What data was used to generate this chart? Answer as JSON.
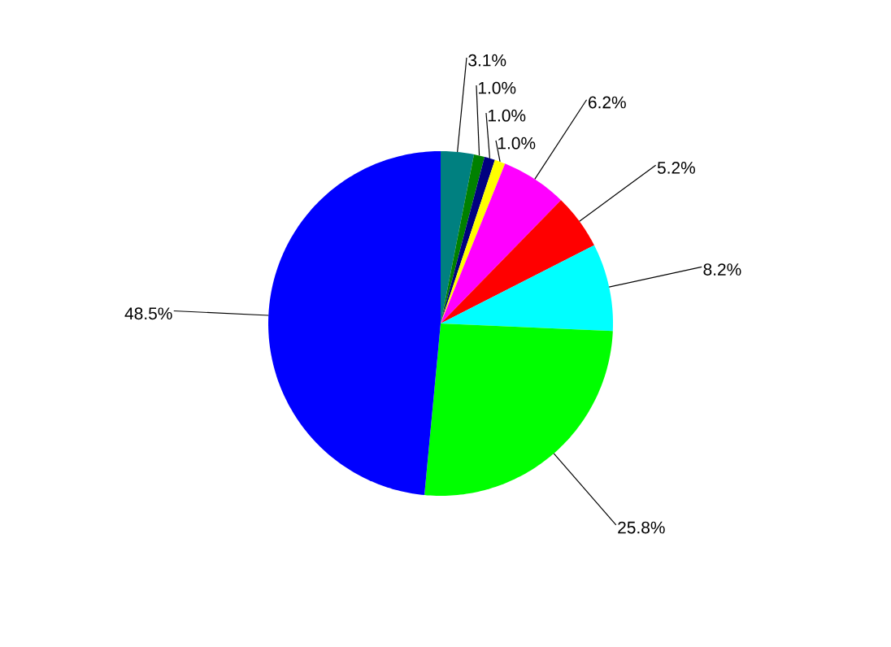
{
  "chart_data": {
    "type": "pie",
    "categories": [
      null,
      null,
      null,
      null,
      null,
      null,
      null,
      null,
      null
    ],
    "values": [
      3.1,
      1.0,
      1.0,
      1.0,
      6.2,
      5.2,
      8.2,
      25.8,
      48.5
    ],
    "colors": [
      "#008080",
      "#008000",
      "#000080",
      "#ffff00",
      "#ff00ff",
      "#ff0000",
      "#00ffff",
      "#00ff00",
      "#0000ff"
    ],
    "value_labels": [
      "3.1%",
      "1.0%",
      "1.0%",
      "1.0%",
      "6.2%",
      "5.2%",
      "8.2%",
      "25.8%",
      "48.5%"
    ]
  }
}
